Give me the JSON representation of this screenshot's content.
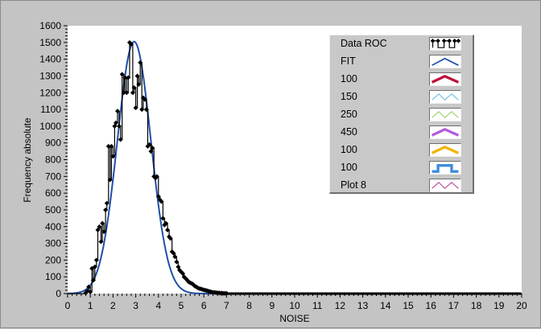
{
  "chart_data": {
    "type": "line",
    "xlabel": "NOISE",
    "ylabel": "Frequency absolute",
    "xlim": [
      0,
      20
    ],
    "ylim": [
      0,
      1600
    ],
    "x_ticks": [
      "0",
      "1",
      "2",
      "3",
      "4",
      "5",
      "6",
      "7",
      "8",
      "9",
      "10",
      "11",
      "12",
      "13",
      "14",
      "15",
      "16",
      "17",
      "18",
      "19",
      "20"
    ],
    "y_ticks": [
      "0",
      "100",
      "200",
      "300",
      "400",
      "500",
      "600",
      "700",
      "800",
      "900",
      "1000",
      "1100",
      "1200",
      "1300",
      "1400",
      "1500",
      "1600"
    ],
    "grid": false,
    "legend_position": "top-right",
    "series": [
      {
        "name": "Data ROC",
        "color": "#000000",
        "style": "step-with-diamond-markers",
        "points": [
          [
            0.8,
            5
          ],
          [
            0.87,
            15
          ],
          [
            0.93,
            40
          ],
          [
            1.0,
            10
          ],
          [
            1.07,
            150
          ],
          [
            1.13,
            80
          ],
          [
            1.2,
            160
          ],
          [
            1.27,
            200
          ],
          [
            1.33,
            380
          ],
          [
            1.4,
            400
          ],
          [
            1.47,
            310
          ],
          [
            1.53,
            420
          ],
          [
            1.6,
            370
          ],
          [
            1.67,
            500
          ],
          [
            1.73,
            540
          ],
          [
            1.8,
            880
          ],
          [
            1.87,
            680
          ],
          [
            1.93,
            880
          ],
          [
            2.0,
            820
          ],
          [
            2.07,
            1000
          ],
          [
            2.13,
            1020
          ],
          [
            2.2,
            1090
          ],
          [
            2.27,
            1000
          ],
          [
            2.33,
            920
          ],
          [
            2.4,
            1310
          ],
          [
            2.47,
            1200
          ],
          [
            2.53,
            1290
          ],
          [
            2.6,
            1200
          ],
          [
            2.67,
            1290
          ],
          [
            2.73,
            1500
          ],
          [
            2.8,
            1490
          ],
          [
            2.87,
            1200
          ],
          [
            2.93,
            1230
          ],
          [
            3.0,
            1110
          ],
          [
            3.07,
            1300
          ],
          [
            3.13,
            1250
          ],
          [
            3.2,
            1380
          ],
          [
            3.27,
            1100
          ],
          [
            3.33,
            1170
          ],
          [
            3.4,
            1160
          ],
          [
            3.47,
            1100
          ],
          [
            3.53,
            880
          ],
          [
            3.6,
            890
          ],
          [
            3.67,
            850
          ],
          [
            3.73,
            870
          ],
          [
            3.8,
            700
          ],
          [
            3.87,
            690
          ],
          [
            3.93,
            700
          ],
          [
            4.0,
            580
          ],
          [
            4.07,
            560
          ],
          [
            4.13,
            550
          ],
          [
            4.2,
            450
          ],
          [
            4.27,
            410
          ],
          [
            4.33,
            420
          ],
          [
            4.4,
            380
          ],
          [
            4.47,
            340
          ],
          [
            4.53,
            330
          ],
          [
            4.6,
            250
          ],
          [
            4.67,
            240
          ],
          [
            4.73,
            220
          ],
          [
            4.8,
            190
          ],
          [
            4.87,
            160
          ],
          [
            4.93,
            140
          ],
          [
            5.0,
            130
          ],
          [
            5.07,
            120
          ],
          [
            5.13,
            100
          ],
          [
            5.2,
            90
          ],
          [
            5.27,
            80
          ],
          [
            5.33,
            70
          ],
          [
            5.4,
            65
          ],
          [
            5.47,
            60
          ],
          [
            5.53,
            55
          ],
          [
            5.6,
            45
          ],
          [
            5.67,
            40
          ],
          [
            5.73,
            35
          ],
          [
            5.8,
            30
          ],
          [
            5.87,
            28
          ],
          [
            5.93,
            25
          ],
          [
            6.0,
            22
          ],
          [
            6.07,
            20
          ],
          [
            6.13,
            18
          ],
          [
            6.2,
            15
          ],
          [
            6.27,
            12
          ],
          [
            6.33,
            10
          ],
          [
            6.4,
            8
          ],
          [
            6.47,
            7
          ],
          [
            6.53,
            6
          ],
          [
            6.6,
            5
          ],
          [
            6.67,
            4
          ],
          [
            6.73,
            3
          ],
          [
            6.8,
            3
          ],
          [
            6.87,
            2
          ],
          [
            6.93,
            2
          ],
          [
            7.0,
            1
          ]
        ],
        "tail_zero_to": 20
      },
      {
        "name": "FIT",
        "color": "#1f4fa8",
        "style": "line",
        "gaussian": {
          "mean": 2.93,
          "sigma": 0.74,
          "amplitude": 1505
        },
        "x_range": [
          0,
          20
        ]
      }
    ],
    "legend": [
      {
        "name": "Data ROC",
        "color": "#000000",
        "icon": "step-diamond-line"
      },
      {
        "name": "FIT",
        "color": "#1f4fa8",
        "icon": "line"
      },
      {
        "name": "100",
        "color": "#c0103c",
        "icon": "thick-line"
      },
      {
        "name": "150",
        "color": "#5ab4e6",
        "icon": "thin-line"
      },
      {
        "name": "250",
        "color": "#8ccc50",
        "icon": "thin-line"
      },
      {
        "name": "450",
        "color": "#b45adc",
        "icon": "thick-line"
      },
      {
        "name": "100",
        "color": "#f0b400",
        "icon": "thick-line"
      },
      {
        "name": "100",
        "color": "#3c8cdc",
        "icon": "square-step"
      },
      {
        "name": "Plot 8",
        "color": "#b4288c",
        "icon": "thin-line"
      }
    ]
  }
}
